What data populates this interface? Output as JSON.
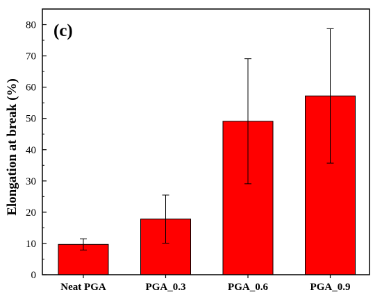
{
  "chart_data": {
    "type": "bar",
    "panel_label": "(c)",
    "title": "",
    "xlabel": "",
    "ylabel": "Elongation at break (%)",
    "categories": [
      "Neat PGA",
      "PGA_0.3",
      "PGA_0.6",
      "PGA_0.9"
    ],
    "values": [
      9.7,
      17.8,
      49.1,
      57.2
    ],
    "errors": [
      1.8,
      7.7,
      20.0,
      21.5
    ],
    "ylim": [
      0,
      85
    ],
    "yticks": [
      0,
      10,
      20,
      30,
      40,
      50,
      60,
      70,
      80
    ],
    "grid": false,
    "legend": "none",
    "bar_color": "#ff0000"
  }
}
